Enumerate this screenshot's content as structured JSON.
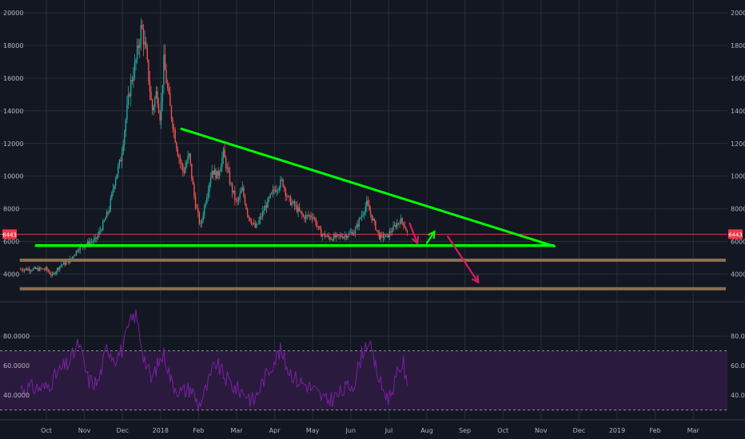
{
  "colors": {
    "background": "#131722",
    "grid": "#2a2e39",
    "candle_up": "#26a69a",
    "candle_down": "#ef5350",
    "trendline": "#00ff00",
    "support_band": "#8d6e52",
    "price_line": "#f23645",
    "arrow_down": "#d81b60",
    "arrow_up": "#00ff00",
    "rsi_line": "#7b1fa2",
    "rsi_band": "#2a1a3e",
    "rsi_bound": "#b2b5be"
  },
  "chart_data": [
    {
      "type": "candlestick",
      "title": "",
      "x_labels": [
        "Oct",
        "Nov",
        "Dec",
        "2018",
        "Feb",
        "Mar",
        "Apr",
        "May",
        "Jun",
        "Jul",
        "Aug",
        "Sep",
        "Oct",
        "Nov",
        "Dec",
        "2019",
        "Feb",
        "Mar"
      ],
      "y_ticks": [
        4000,
        6000,
        8000,
        10000,
        12000,
        14000,
        16000,
        18000,
        20000
      ],
      "ylim": [
        2600,
        20500
      ],
      "last_price_label": "6443",
      "last_price": 6443,
      "price_path": [
        {
          "month": 0.0,
          "price": 4300
        },
        {
          "month": 0.15,
          "price": 3900
        },
        {
          "month": 0.35,
          "price": 4500
        },
        {
          "month": 0.6,
          "price": 4800
        },
        {
          "month": 0.85,
          "price": 5600
        },
        {
          "month": 1.1,
          "price": 5900
        },
        {
          "month": 1.3,
          "price": 6100
        },
        {
          "month": 1.5,
          "price": 7100
        },
        {
          "month": 1.65,
          "price": 8000
        },
        {
          "month": 1.8,
          "price": 9800
        },
        {
          "month": 1.95,
          "price": 11000
        },
        {
          "month": 2.2,
          "price": 15500
        },
        {
          "month": 2.35,
          "price": 17000
        },
        {
          "month": 2.5,
          "price": 19200
        },
        {
          "month": 2.62,
          "price": 17500
        },
        {
          "month": 2.78,
          "price": 14000
        },
        {
          "month": 2.9,
          "price": 15200
        },
        {
          "month": 3.0,
          "price": 13500
        },
        {
          "month": 3.08,
          "price": 17100
        },
        {
          "month": 3.25,
          "price": 14200
        },
        {
          "month": 3.45,
          "price": 11500
        },
        {
          "month": 3.6,
          "price": 10200
        },
        {
          "month": 3.75,
          "price": 11300
        },
        {
          "month": 3.9,
          "price": 8500
        },
        {
          "month": 4.05,
          "price": 6900
        },
        {
          "month": 4.2,
          "price": 8700
        },
        {
          "month": 4.35,
          "price": 10400
        },
        {
          "month": 4.5,
          "price": 10000
        },
        {
          "month": 4.65,
          "price": 11400
        },
        {
          "month": 4.85,
          "price": 9400
        },
        {
          "month": 5.0,
          "price": 8300
        },
        {
          "month": 5.15,
          "price": 9200
        },
        {
          "month": 5.3,
          "price": 7600
        },
        {
          "month": 5.5,
          "price": 6800
        },
        {
          "month": 5.75,
          "price": 8100
        },
        {
          "month": 6.0,
          "price": 9200
        },
        {
          "month": 6.2,
          "price": 9700
        },
        {
          "month": 6.35,
          "price": 8600
        },
        {
          "month": 6.55,
          "price": 8100
        },
        {
          "month": 6.75,
          "price": 7500
        },
        {
          "month": 7.0,
          "price": 7600
        },
        {
          "month": 7.2,
          "price": 6500
        },
        {
          "month": 7.45,
          "price": 6200
        },
        {
          "month": 7.7,
          "price": 6300
        },
        {
          "month": 7.9,
          "price": 6400
        },
        {
          "month": 8.1,
          "price": 6600
        },
        {
          "month": 8.3,
          "price": 7700
        },
        {
          "month": 8.42,
          "price": 8300
        },
        {
          "month": 8.55,
          "price": 7500
        },
        {
          "month": 8.75,
          "price": 6300
        },
        {
          "month": 8.95,
          "price": 6300
        },
        {
          "month": 9.15,
          "price": 6900
        },
        {
          "month": 9.3,
          "price": 7300
        },
        {
          "month": 9.4,
          "price": 7100
        },
        {
          "month": 9.5,
          "price": 6400
        }
      ],
      "annotations": {
        "descending_trendline": [
          {
            "month": 3.55,
            "price": 12900
          },
          {
            "month": 13.35,
            "price": 5700
          }
        ],
        "support_line": [
          {
            "month": -0.3,
            "price": 5750
          },
          {
            "month": 13.35,
            "price": 5750
          }
        ],
        "support_bands": [
          4850,
          3100
        ],
        "arrows": [
          {
            "color": "arrow_down",
            "from": {
              "month": 9.55,
              "price": 7100
            },
            "to": {
              "month": 9.75,
              "price": 5900
            }
          },
          {
            "color": "arrow_up",
            "from": {
              "month": 10.0,
              "price": 5900
            },
            "to": {
              "month": 10.2,
              "price": 6600
            }
          },
          {
            "color": "arrow_down",
            "from": {
              "month": 10.55,
              "price": 6300
            },
            "to": {
              "month": 11.35,
              "price": 3500
            }
          }
        ]
      }
    },
    {
      "type": "line",
      "title": "",
      "y_ticks_labels": [
        "80.0000",
        "60.0000",
        "40.0000"
      ],
      "y_ticks": [
        80,
        60,
        40
      ],
      "ylim": [
        25,
        100
      ],
      "band": [
        30,
        70
      ],
      "series": [
        {
          "values": [
            {
              "month": 0.0,
              "value": 45
            },
            {
              "month": 0.3,
              "value": 55
            },
            {
              "month": 0.6,
              "value": 62
            },
            {
              "month": 0.85,
              "value": 75
            },
            {
              "month": 1.1,
              "value": 50
            },
            {
              "month": 1.35,
              "value": 48
            },
            {
              "month": 1.6,
              "value": 73
            },
            {
              "month": 1.8,
              "value": 65
            },
            {
              "month": 2.0,
              "value": 71
            },
            {
              "month": 2.2,
              "value": 89
            },
            {
              "month": 2.35,
              "value": 95
            },
            {
              "month": 2.55,
              "value": 68
            },
            {
              "month": 2.75,
              "value": 50
            },
            {
              "month": 2.95,
              "value": 62
            },
            {
              "month": 3.1,
              "value": 68
            },
            {
              "month": 3.3,
              "value": 48
            },
            {
              "month": 3.55,
              "value": 42
            },
            {
              "month": 3.8,
              "value": 45
            },
            {
              "month": 4.0,
              "value": 33
            },
            {
              "month": 4.2,
              "value": 44
            },
            {
              "month": 4.45,
              "value": 62
            },
            {
              "month": 4.7,
              "value": 52
            },
            {
              "month": 4.95,
              "value": 45
            },
            {
              "month": 5.2,
              "value": 42
            },
            {
              "month": 5.45,
              "value": 36
            },
            {
              "month": 5.7,
              "value": 50
            },
            {
              "month": 5.95,
              "value": 62
            },
            {
              "month": 6.15,
              "value": 70
            },
            {
              "month": 6.35,
              "value": 58
            },
            {
              "month": 6.6,
              "value": 50
            },
            {
              "month": 6.85,
              "value": 47
            },
            {
              "month": 7.1,
              "value": 42
            },
            {
              "month": 7.35,
              "value": 36
            },
            {
              "month": 7.6,
              "value": 39
            },
            {
              "month": 7.85,
              "value": 44
            },
            {
              "month": 8.1,
              "value": 49
            },
            {
              "month": 8.3,
              "value": 69
            },
            {
              "month": 8.45,
              "value": 77
            },
            {
              "month": 8.6,
              "value": 64
            },
            {
              "month": 8.8,
              "value": 46
            },
            {
              "month": 9.0,
              "value": 38
            },
            {
              "month": 9.2,
              "value": 52
            },
            {
              "month": 9.38,
              "value": 63
            },
            {
              "month": 9.5,
              "value": 40
            }
          ]
        }
      ]
    }
  ]
}
